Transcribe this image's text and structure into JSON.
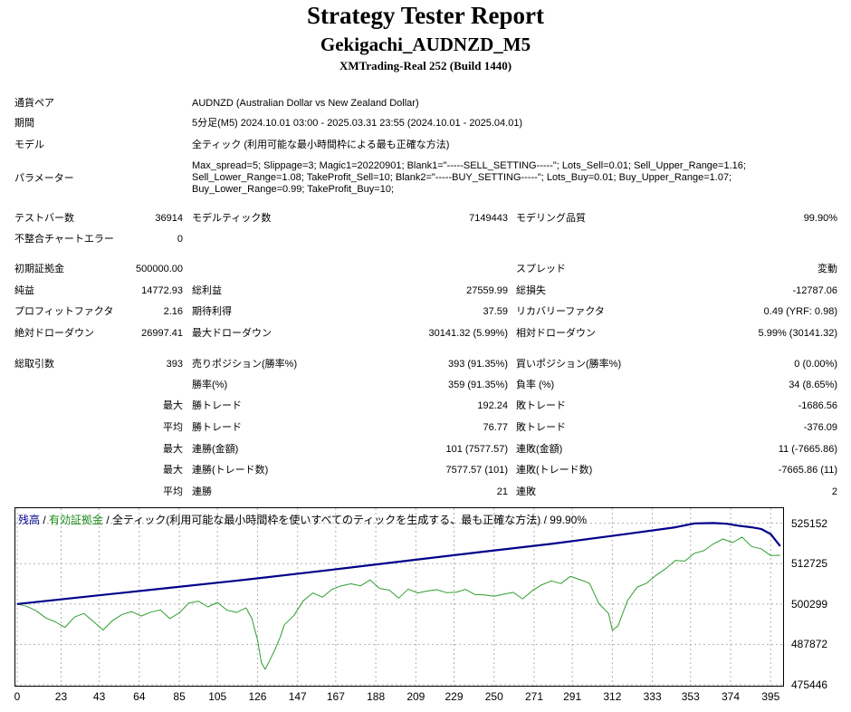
{
  "header": {
    "title": "Strategy Tester Report",
    "subtitle": "Gekigachi_AUDNZD_M5",
    "server": "XMTrading-Real 252 (Build 1440)"
  },
  "info": {
    "symbol_label": "通貨ペア",
    "symbol_value": "AUDNZD (Australian Dollar vs New Zealand Dollar)",
    "period_label": "期間",
    "period_value": "5分足(M5) 2024.10.01 03:00 - 2025.03.31 23:55 (2024.10.01 - 2025.04.01)",
    "model_label": "モデル",
    "model_value": "全ティック (利用可能な最小時間枠による最も正確な方法)",
    "params_label": "パラメーター",
    "params_value": "Max_spread=5; Slippage=3; Magic1=20220901; Blank1=\"-----SELL_SETTING-----\"; Lots_Sell=0.01; Sell_Upper_Range=1.16; Sell_Lower_Range=1.08; TakeProfit_Sell=10; Blank2=\"-----BUY_SETTING-----\"; Lots_Buy=0.01; Buy_Upper_Range=1.07; Buy_Lower_Range=0.99; TakeProfit_Buy=10;"
  },
  "stats": {
    "bars_label": "テストバー数",
    "bars_value": "36914",
    "ticks_label": "モデルティック数",
    "ticks_value": "7149443",
    "quality_label": "モデリング品質",
    "quality_value": "99.90%",
    "mismatch_label": "不整合チャートエラー",
    "mismatch_value": "0",
    "deposit_label": "初期証拠金",
    "deposit_value": "500000.00",
    "spread_label": "スプレッド",
    "spread_value": "変動",
    "net_label": "純益",
    "net_value": "14772.93",
    "gross_profit_label": "総利益",
    "gross_profit_value": "27559.99",
    "gross_loss_label": "総損失",
    "gross_loss_value": "-12787.06",
    "pf_label": "プロフィットファクタ",
    "pf_value": "2.16",
    "payoff_label": "期待利得",
    "payoff_value": "37.59",
    "recovery_label": "リカバリーファクタ",
    "recovery_value": "0.49 (YRF: 0.98)",
    "abs_dd_label": "絶対ドローダウン",
    "abs_dd_value": "26997.41",
    "max_dd_label": "最大ドローダウン",
    "max_dd_value": "30141.32 (5.99%)",
    "rel_dd_label": "相対ドローダウン",
    "rel_dd_value": "5.99% (30141.32)",
    "trades_label": "総取引数",
    "trades_value": "393",
    "short_label": "売りポジション(勝率%)",
    "short_value": "393 (91.35%)",
    "long_label": "買いポジション(勝率%)",
    "long_value": "0 (0.00%)",
    "win_label": "勝率(%)",
    "win_value": "359 (91.35%)",
    "loss_label": "負率 (%)",
    "loss_value": "34 (8.65%)",
    "largest_label": "最大",
    "largest_win_label": "勝トレード",
    "largest_win_value": "192.24",
    "largest_loss_label": "敗トレード",
    "largest_loss_value": "-1686.56",
    "average_label": "平均",
    "avg_win_label": "勝トレード",
    "avg_win_value": "76.77",
    "avg_loss_label": "敗トレード",
    "avg_loss_value": "-376.09",
    "max_label": "最大",
    "consec_wins_money_label": "連勝(金額)",
    "consec_wins_money_value": "101 (7577.57)",
    "consec_losses_money_label": "連敗(金額)",
    "consec_losses_money_value": "11 (-7665.86)",
    "max_label2": "最大",
    "consec_profit_label": "連勝(トレード数)",
    "consec_profit_value": "7577.57 (101)",
    "consec_loss_label": "連敗(トレード数)",
    "consec_loss_value": "-7665.86 (11)",
    "avg_label2": "平均",
    "avg_consec_wins_label": "連勝",
    "avg_consec_wins_value": "21",
    "avg_consec_losses_label": "連敗",
    "avg_consec_losses_value": "2"
  },
  "chart_data": {
    "type": "line",
    "legend": {
      "balance": "残高",
      "sep1": " / ",
      "equity": "有効証拠金",
      "rest": " / 全ティック(利用可能な最小時間枠を使いすべてのティックを生成する、最も正確な方法) / 99.90%"
    },
    "colors": {
      "balance": "#00008b",
      "equity": "#2e9e2e",
      "legend_balance": "#00008b",
      "legend_equity": "#1e8c1e"
    },
    "y_ticks": [
      "525152",
      "512725",
      "500299",
      "487872",
      "475446"
    ],
    "y_tick_values": [
      525152,
      512725,
      500299,
      487872,
      475446
    ],
    "x_ticks": [
      "0",
      "23",
      "43",
      "64",
      "85",
      "105",
      "126",
      "147",
      "167",
      "188",
      "209",
      "229",
      "250",
      "271",
      "291",
      "312",
      "333",
      "353",
      "374",
      "395"
    ],
    "ylim": [
      475446,
      529500
    ],
    "xlim": [
      0,
      402
    ],
    "series": [
      {
        "key": "balance",
        "x": [
          0,
          40,
          80,
          120,
          160,
          200,
          240,
          280,
          320,
          345,
          355,
          365,
          372,
          378,
          385,
          390,
          395,
          400
        ],
        "values": [
          500299,
          502800,
          505300,
          507800,
          510500,
          513300,
          516100,
          518800,
          521900,
          523900,
          525100,
          525200,
          525000,
          524400,
          523900,
          523400,
          521800,
          518100
        ]
      },
      {
        "key": "equity",
        "x": [
          0,
          5,
          10,
          15,
          20,
          25,
          30,
          35,
          40,
          45,
          50,
          55,
          60,
          65,
          70,
          75,
          80,
          85,
          90,
          95,
          100,
          105,
          110,
          115,
          120,
          123,
          126,
          128,
          130,
          132,
          135,
          138,
          140,
          145,
          150,
          155,
          160,
          165,
          170,
          175,
          180,
          185,
          190,
          195,
          200,
          205,
          210,
          215,
          220,
          225,
          230,
          235,
          240,
          245,
          250,
          255,
          260,
          265,
          270,
          275,
          280,
          285,
          290,
          295,
          300,
          305,
          310,
          312,
          315,
          318,
          320,
          325,
          330,
          335,
          340,
          345,
          350,
          355,
          360,
          365,
          370,
          375,
          380,
          385,
          390,
          395,
          400
        ],
        "values": [
          500299,
          499600,
          498200,
          496000,
          494800,
          493100,
          496300,
          497400,
          494900,
          492300,
          495200,
          497100,
          498000,
          496600,
          497800,
          498500,
          495800,
          497600,
          500600,
          501200,
          499400,
          500800,
          498400,
          497700,
          499100,
          495800,
          489200,
          482300,
          480200,
          482500,
          486100,
          490300,
          493900,
          496700,
          501300,
          503700,
          502400,
          504800,
          505900,
          506500,
          505900,
          507700,
          505100,
          504600,
          502100,
          504900,
          503700,
          504300,
          504700,
          503800,
          503900,
          504800,
          503200,
          503100,
          502700,
          503300,
          503900,
          501900,
          504400,
          506200,
          507400,
          506600,
          508800,
          507800,
          506700,
          500400,
          497400,
          492200,
          493600,
          498300,
          501400,
          505500,
          506700,
          509200,
          511200,
          513700,
          513500,
          515900,
          516700,
          518800,
          520300,
          519200,
          520900,
          518000,
          517300,
          515200,
          515300
        ]
      }
    ]
  }
}
